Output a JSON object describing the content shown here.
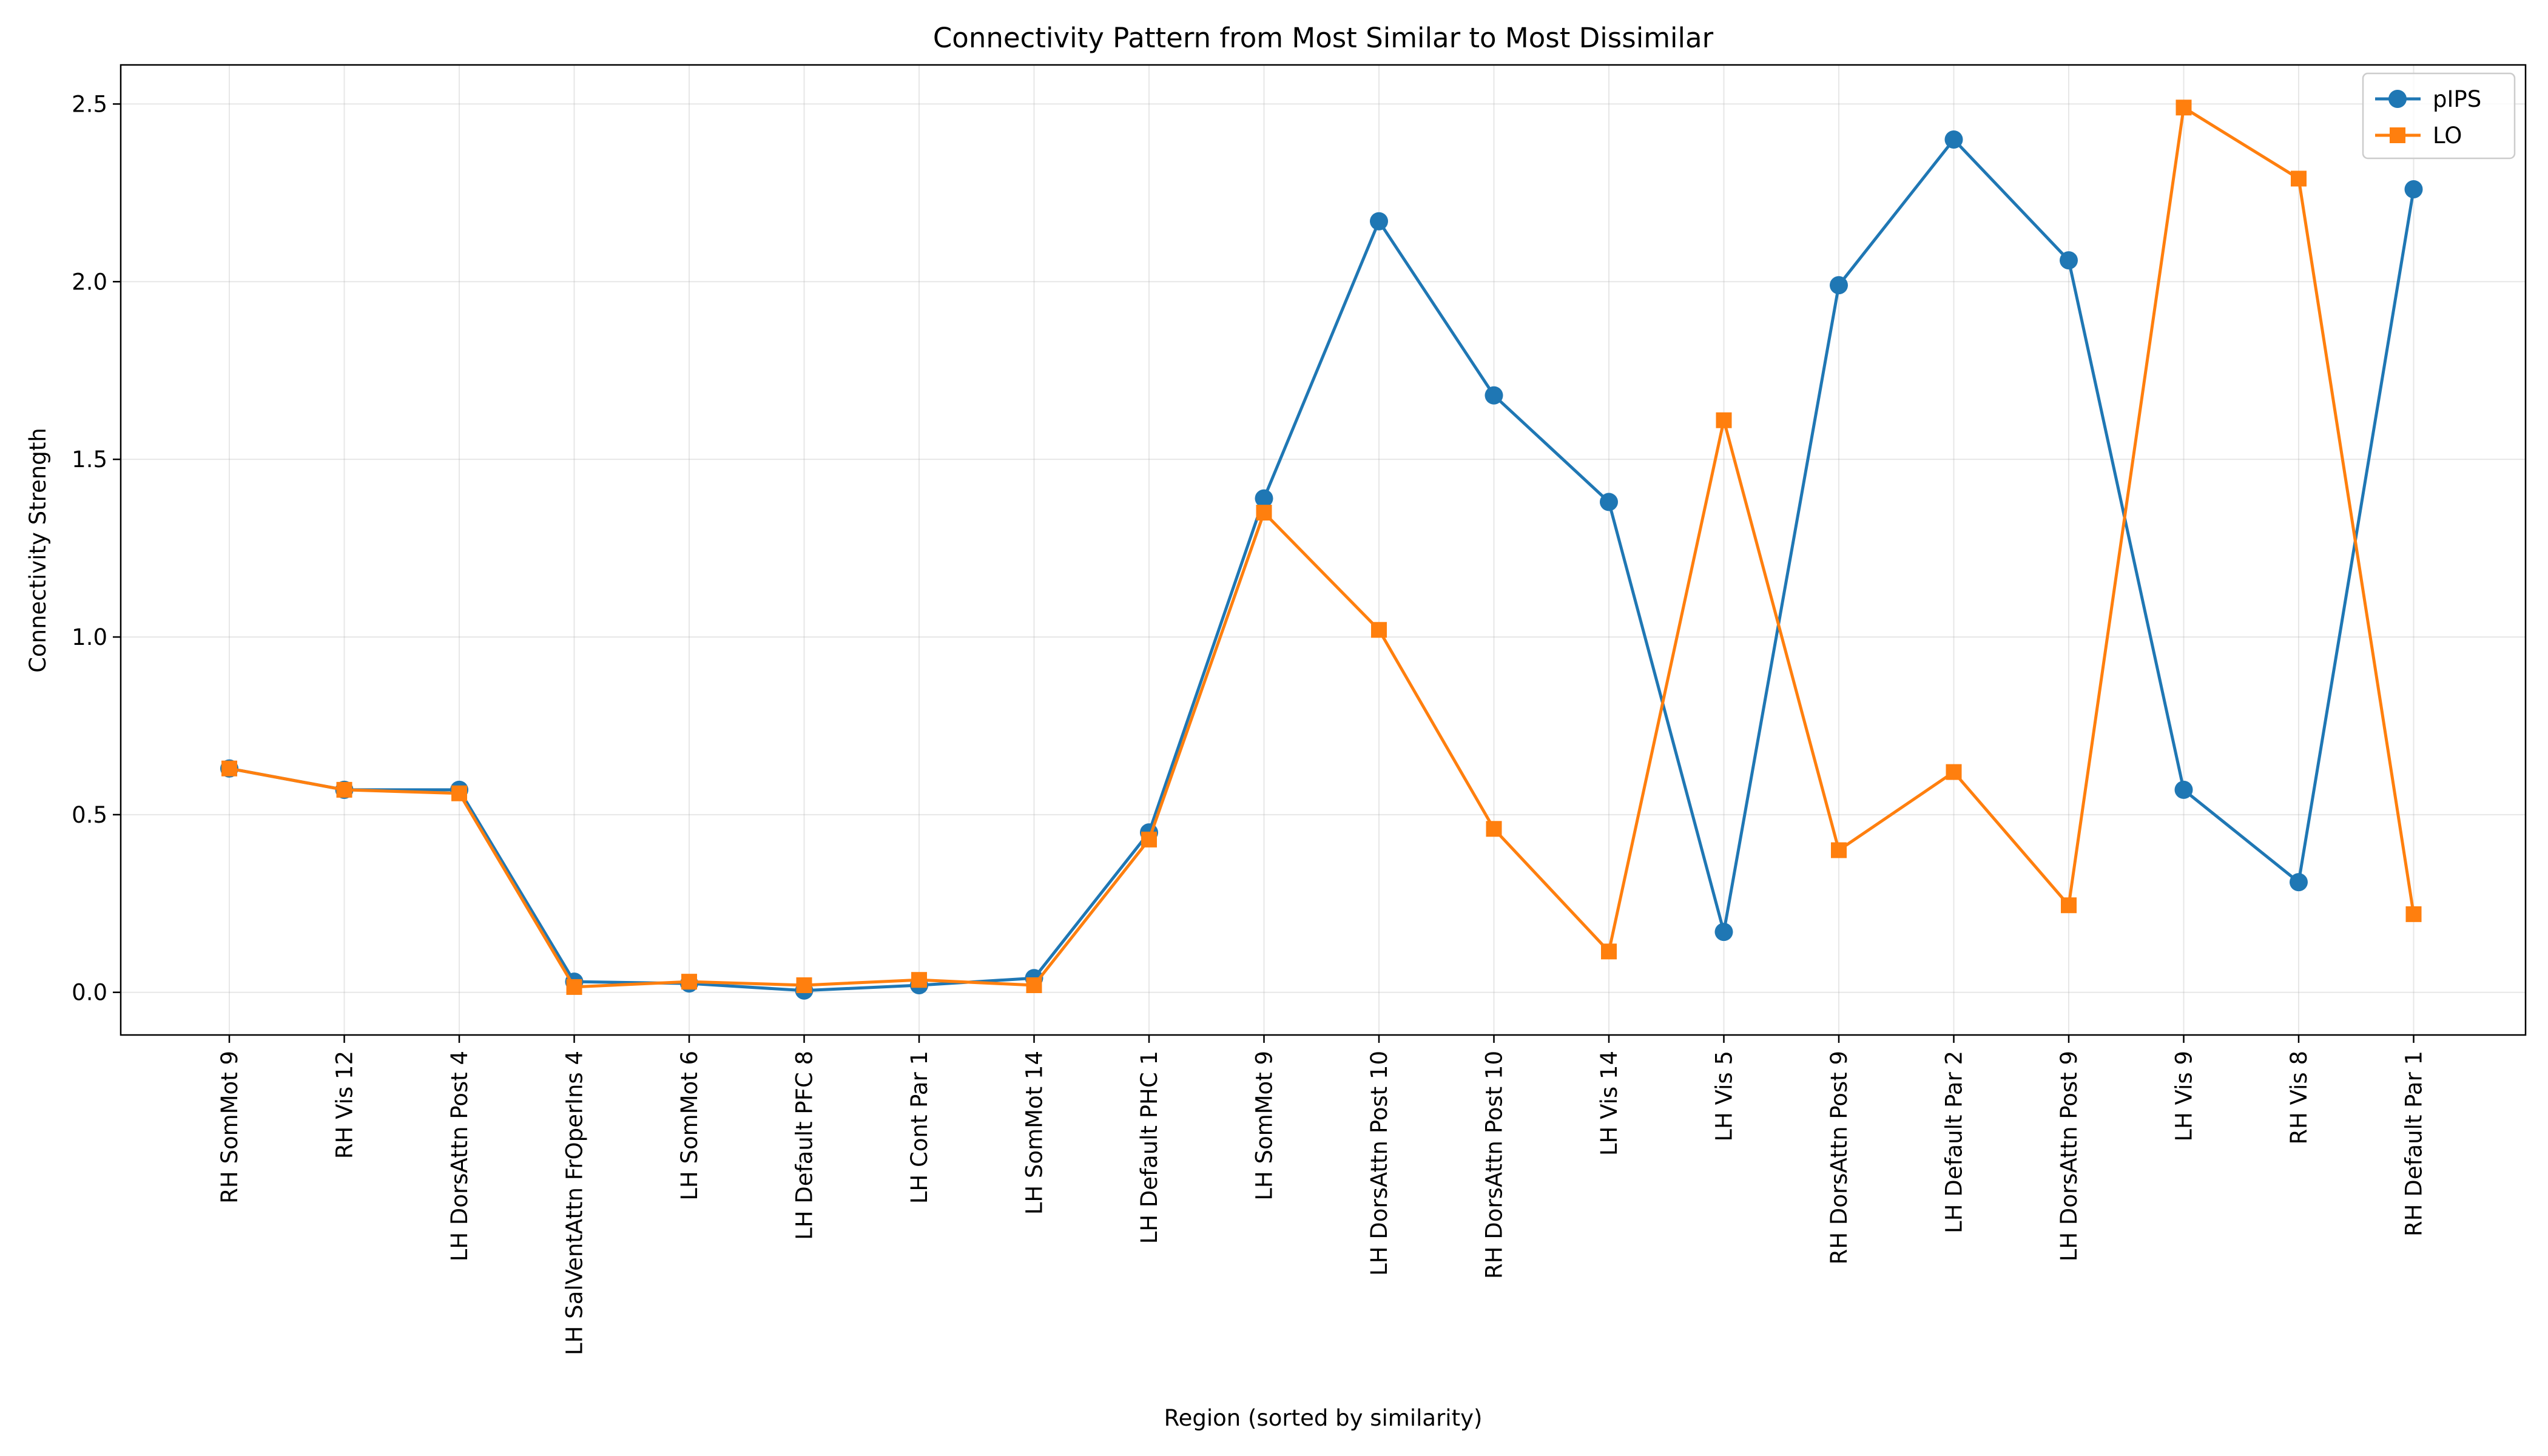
{
  "chart_data": {
    "type": "line",
    "title": "Connectivity Pattern from Most Similar to Most Dissimilar",
    "xlabel": "Region (sorted by similarity)",
    "ylabel": "Connectivity Strength",
    "ylim": [
      -0.12,
      2.61
    ],
    "yticks": [
      0.0,
      0.5,
      1.0,
      1.5,
      2.0,
      2.5
    ],
    "ytick_labels": [
      "0.0",
      "0.5",
      "1.0",
      "1.5",
      "2.0",
      "2.5"
    ],
    "grid": true,
    "legend_position": "top-right",
    "categories": [
      "RH SomMot 9",
      "RH Vis 12",
      "LH DorsAttn Post 4",
      "LH SalVentAttn FrOperIns 4",
      "LH SomMot 6",
      "LH Default PFC 8",
      "LH Cont Par 1",
      "LH SomMot 14",
      "LH Default PHC 1",
      "LH SomMot 9",
      "LH DorsAttn Post 10",
      "RH DorsAttn Post 10",
      "LH Vis 14",
      "LH Vis 5",
      "RH DorsAttn Post 9",
      "LH Default Par 2",
      "LH DorsAttn Post 9",
      "LH Vis 9",
      "RH Vis 8",
      "RH Default Par 1"
    ],
    "series": [
      {
        "name": "pIPS",
        "color": "#1f77b4",
        "marker": "circle",
        "values": [
          0.63,
          0.57,
          0.57,
          0.03,
          0.025,
          0.005,
          0.02,
          0.04,
          0.45,
          1.39,
          2.17,
          1.68,
          1.38,
          0.17,
          1.99,
          2.4,
          2.06,
          0.57,
          0.31,
          2.26
        ]
      },
      {
        "name": "LO",
        "color": "#ff7f0e",
        "marker": "square",
        "values": [
          0.63,
          0.57,
          0.56,
          0.015,
          0.03,
          0.02,
          0.035,
          0.02,
          0.43,
          1.35,
          1.02,
          0.46,
          0.115,
          1.61,
          0.4,
          0.62,
          0.245,
          2.49,
          2.29,
          0.22
        ]
      }
    ]
  }
}
